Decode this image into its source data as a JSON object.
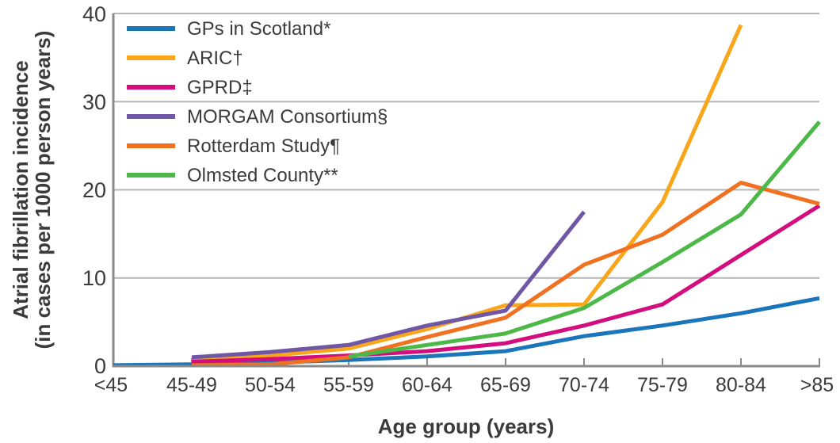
{
  "chart_data": {
    "type": "line",
    "title": "",
    "xlabel": "Age group (years)",
    "ylabel": "Atrial fibrillation incidence (in cases per 1000 person years)",
    "ylabel_line1": "Atrial fibrillation incidence",
    "ylabel_line2": "(in cases per 1000 person years)",
    "categories": [
      "<45",
      "45-49",
      "50-54",
      "55-59",
      "60-64",
      "65-69",
      "70-74",
      "75-79",
      "80-84",
      ">85"
    ],
    "ylim": [
      0,
      40
    ],
    "yticks": [
      0,
      10,
      20,
      30,
      40
    ],
    "grid": true,
    "legend_position": "top-left",
    "units": "cases per 1000 person years",
    "series": [
      {
        "name": "GPs in Scotland*",
        "color": "#1b75bb",
        "start_index": 0,
        "values": [
          0.1,
          0.2,
          0.4,
          0.7,
          1.1,
          1.7,
          3.4,
          4.6,
          6.0,
          7.7
        ]
      },
      {
        "name": "ARIC†",
        "color": "#f9a61b",
        "start_index": 1,
        "values": [
          0.7,
          1.2,
          2.0,
          4.2,
          6.9,
          7.0,
          18.6,
          38.7
        ]
      },
      {
        "name": "GPRD‡",
        "color": "#d40d7f",
        "start_index": 1,
        "values": [
          0.5,
          0.8,
          1.2,
          1.7,
          2.6,
          4.6,
          7.0,
          12.6,
          18.2
        ]
      },
      {
        "name": "MORGAM Consortium§",
        "color": "#6f57a6",
        "start_index": 1,
        "values": [
          1.0,
          1.6,
          2.4,
          4.6,
          6.3,
          17.5
        ]
      },
      {
        "name": "Rotterdam Study¶",
        "color": "#f0711f",
        "start_index": 1,
        "values": [
          0.1,
          0.2,
          1.0,
          3.3,
          5.5,
          11.5,
          14.9,
          20.8,
          18.4
        ]
      },
      {
        "name": "Olmsted County**",
        "color": "#4cb848",
        "start_index": 3,
        "values": [
          1.1,
          2.4,
          3.7,
          6.6,
          11.8,
          17.2,
          27.7
        ]
      }
    ]
  },
  "styles": {
    "grid_color": "#b5b5b5",
    "axis_color": "#8a8a8a",
    "text_color": "#3b3b3b",
    "background": "#ffffff"
  }
}
